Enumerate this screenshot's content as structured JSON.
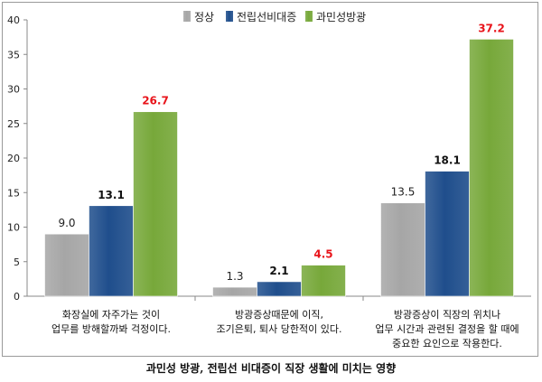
{
  "chart_data": {
    "type": "bar",
    "title": "",
    "xlabel": "",
    "ylabel": "",
    "ylim": [
      0,
      40
    ],
    "yticks": [
      0,
      5,
      10,
      15,
      20,
      25,
      30,
      35,
      40
    ],
    "categories": [
      [
        "화장실에 자주가는 것이",
        "업무를 방해할까봐 걱정이다."
      ],
      [
        "방광증상때문에 이직,",
        "조기은퇴, 퇴사 당한적이 있다."
      ],
      [
        "방광증상이 직장의 위치나",
        "업무 시간과 관련된 결정을 할 때에",
        "중요한 요인으로 작용한다."
      ]
    ],
    "series": [
      {
        "name": "정상",
        "values": [
          9.0,
          1.3,
          13.5
        ],
        "labels": [
          "9.0",
          "1.3",
          "13.5"
        ],
        "color": "#a6a6a6",
        "label_color": "#222222",
        "label_bold": false
      },
      {
        "name": "전립선비대증",
        "values": [
          13.1,
          2.1,
          18.1
        ],
        "labels": [
          "13.1",
          "2.1",
          "18.1"
        ],
        "color": "#1f4e8c",
        "label_color": "#111111",
        "label_bold": true
      },
      {
        "name": "과민성방광",
        "values": [
          26.7,
          4.5,
          37.2
        ],
        "labels": [
          "26.7",
          "4.5",
          "37.2"
        ],
        "color": "#77a83a",
        "label_color": "#e8141b",
        "label_bold": true
      }
    ],
    "grid": false,
    "legend_position": "top-center"
  },
  "caption": "과민성 방광, 전립선 비대증이 직장 생활에 미치는 영향"
}
